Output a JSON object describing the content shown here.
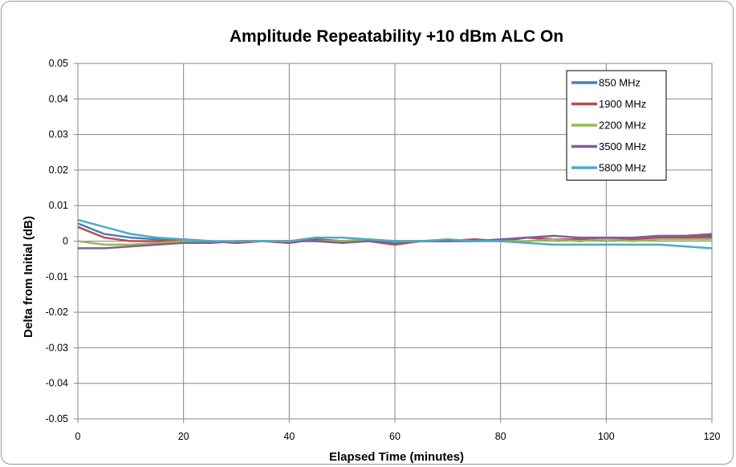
{
  "chart_data": {
    "type": "line",
    "title": "Amplitude Repeatability +10 dBm  ALC On",
    "xlabel": "Elapsed Time (minutes)",
    "ylabel": "Delta from Initial (dB)",
    "xlim": [
      0,
      120
    ],
    "ylim": [
      -0.05,
      0.05
    ],
    "x_ticks": [
      "0",
      "20",
      "40",
      "60",
      "80",
      "100",
      "120"
    ],
    "y_ticks": [
      "0.05",
      "0.04",
      "0.03",
      "0.02",
      "0.01",
      "0",
      "-0.01",
      "-0.02",
      "-0.03",
      "-0.04",
      "-0.05"
    ],
    "grid": true,
    "legend_position": "top-right",
    "series": [
      {
        "name": "850 MHz",
        "color": "#4a7ebb",
        "x": [
          0,
          5,
          10,
          15,
          20,
          25,
          30,
          35,
          40,
          45,
          50,
          55,
          60,
          65,
          70,
          75,
          80,
          85,
          90,
          95,
          100,
          105,
          110,
          115,
          120
        ],
        "y": [
          0.005,
          0.002,
          0.001,
          0.0005,
          0.0,
          0.0,
          -0.0005,
          0.0,
          -0.0005,
          0.0005,
          0.0,
          0.0,
          -0.0005,
          0.0,
          0.0,
          0.0005,
          0.0,
          0.001,
          0.0005,
          0.0,
          0.0005,
          0.0005,
          0.0005,
          0.001,
          0.001
        ]
      },
      {
        "name": "1900 MHz",
        "color": "#be4b48",
        "x": [
          0,
          5,
          10,
          15,
          20,
          25,
          30,
          35,
          40,
          45,
          50,
          55,
          60,
          65,
          70,
          75,
          80,
          85,
          90,
          95,
          100,
          105,
          110,
          115,
          120
        ],
        "y": [
          0.004,
          0.001,
          0.0,
          0.0,
          0.0005,
          0.0,
          -0.0005,
          0.0,
          -0.0005,
          0.0005,
          0.0,
          0.0,
          -0.001,
          0.0,
          0.0,
          0.0005,
          0.0,
          0.001,
          0.0005,
          0.0005,
          0.0005,
          0.0005,
          0.001,
          0.001,
          0.0015
        ]
      },
      {
        "name": "2200 MHz",
        "color": "#98b954",
        "x": [
          0,
          5,
          10,
          15,
          20,
          25,
          30,
          35,
          40,
          45,
          50,
          55,
          60,
          65,
          70,
          75,
          80,
          85,
          90,
          95,
          100,
          105,
          110,
          115,
          120
        ],
        "y": [
          0.0,
          -0.001,
          -0.001,
          -0.0005,
          0.0,
          -0.0005,
          0.0,
          0.0,
          0.0,
          0.0,
          0.0,
          0.0005,
          0.0,
          0.0,
          0.0,
          0.0,
          0.0,
          0.0,
          0.0005,
          0.0,
          0.0005,
          0.0,
          0.0005,
          0.0005,
          0.0005
        ]
      },
      {
        "name": "3500 MHz",
        "color": "#7d5fa0",
        "x": [
          0,
          5,
          10,
          15,
          20,
          25,
          30,
          35,
          40,
          45,
          50,
          55,
          60,
          65,
          70,
          75,
          80,
          85,
          90,
          95,
          100,
          105,
          110,
          115,
          120
        ],
        "y": [
          -0.002,
          -0.002,
          -0.0015,
          -0.001,
          -0.0005,
          -0.0005,
          0.0,
          0.0,
          0.0,
          0.0,
          -0.0005,
          0.0,
          0.0,
          0.0,
          0.0,
          0.0,
          0.0005,
          0.001,
          0.0015,
          0.001,
          0.001,
          0.001,
          0.0015,
          0.0015,
          0.002
        ]
      },
      {
        "name": "5800 MHz",
        "color": "#4bacc6",
        "x": [
          0,
          5,
          10,
          15,
          20,
          25,
          30,
          35,
          40,
          45,
          50,
          55,
          60,
          65,
          70,
          75,
          80,
          85,
          90,
          95,
          100,
          105,
          110,
          115,
          120
        ],
        "y": [
          0.006,
          0.004,
          0.002,
          0.001,
          0.0005,
          0.0,
          0.0,
          0.0,
          0.0,
          0.001,
          0.001,
          0.0005,
          0.0,
          0.0,
          0.0005,
          0.0,
          0.0,
          -0.0005,
          -0.001,
          -0.001,
          -0.001,
          -0.001,
          -0.001,
          -0.0015,
          -0.002
        ]
      }
    ]
  }
}
